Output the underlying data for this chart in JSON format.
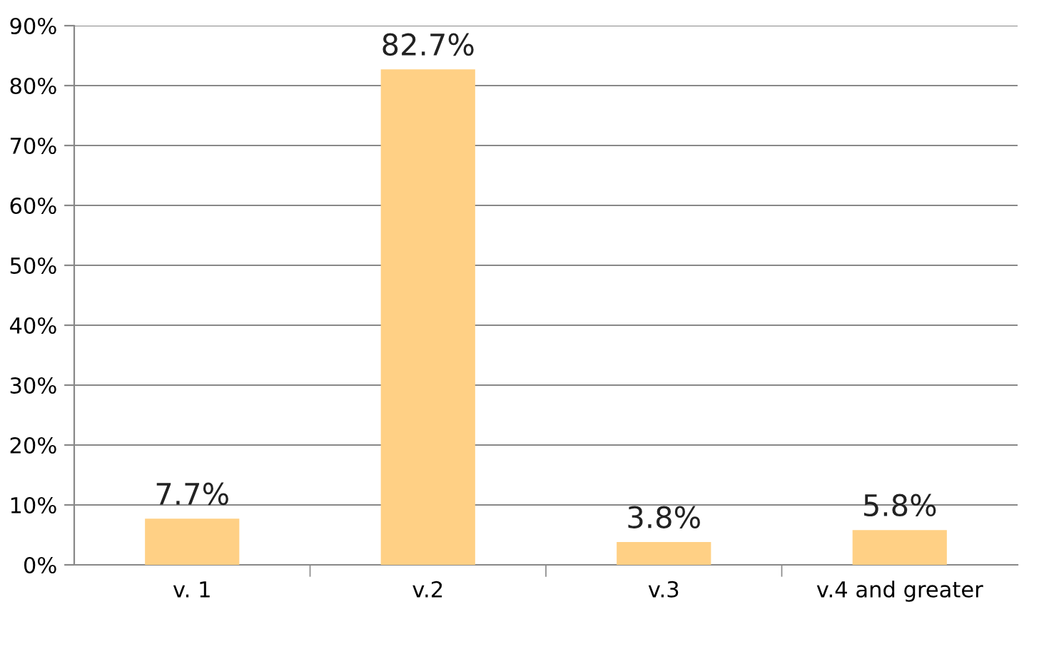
{
  "chart_data": {
    "type": "bar",
    "categories": [
      "v. 1",
      "v.2",
      "v.3",
      "v.4 and greater"
    ],
    "values": [
      7.7,
      82.7,
      3.8,
      5.8
    ],
    "value_labels": [
      "7.7%",
      "82.7%",
      "3.8%",
      "5.8%"
    ],
    "color": "#ffd085",
    "ylim": [
      0,
      90
    ],
    "yticks": [
      {
        "value": 0,
        "label": "0%"
      },
      {
        "value": 10,
        "label": "10%"
      },
      {
        "value": 20,
        "label": "20%"
      },
      {
        "value": 30,
        "label": "30%"
      },
      {
        "value": 40,
        "label": "40%"
      },
      {
        "value": 50,
        "label": "50%"
      },
      {
        "value": 60,
        "label": "60%"
      },
      {
        "value": 70,
        "label": "70%"
      },
      {
        "value": 80,
        "label": "80%"
      },
      {
        "value": 90,
        "label": "90%"
      }
    ],
    "grid": "y"
  }
}
